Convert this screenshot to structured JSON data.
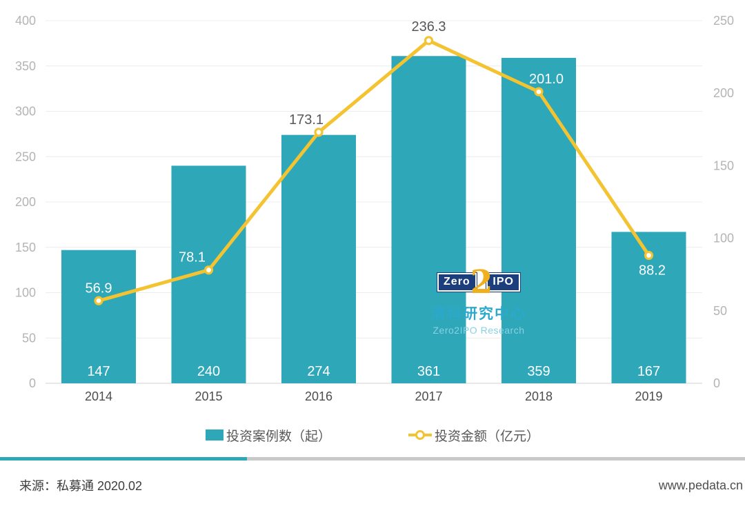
{
  "chart_data": {
    "type": "bar",
    "combo": "bar+line",
    "categories": [
      "2014",
      "2015",
      "2016",
      "2017",
      "2018",
      "2019"
    ],
    "series": [
      {
        "name": "投资案例数（起）",
        "type": "bar",
        "axis": "left",
        "values": [
          147,
          240,
          274,
          361,
          359,
          167
        ],
        "labels": [
          "147",
          "240",
          "274",
          "361",
          "359",
          "167"
        ],
        "color": "#2EA7B8"
      },
      {
        "name": "投资金额（亿元）",
        "type": "line",
        "axis": "right",
        "values": [
          56.9,
          78.1,
          173.1,
          236.3,
          201.0,
          88.2
        ],
        "labels": [
          "56.9",
          "78.1",
          "173.1",
          "236.3",
          "201.0",
          "88.2"
        ],
        "color": "#F3C332"
      }
    ],
    "left_axis": {
      "min": 0,
      "max": 400,
      "step": 50
    },
    "right_axis": {
      "min": 0,
      "max": 250,
      "step": 50
    },
    "grid": true,
    "legend_position": "bottom"
  },
  "logo": {
    "zero": "Zero",
    "two": "2",
    "ipo": "IPO",
    "name_cn": "清科研究中心",
    "name_en": "Zero2IPO Research"
  },
  "footer": {
    "source": "来源：私募通 2020.02",
    "website": "www.pedata.cn"
  },
  "colors": {
    "bar": "#2EA7B8",
    "line": "#F3C332",
    "marker_fill": "#FFFFFF",
    "grid": "#ECECEC",
    "baseline": "#E0E0E0",
    "tick_text": "#B4B4B4",
    "category_text": "#4D4D4D",
    "bar_label_text": "#FFFFFF",
    "line_label_dark": "#56575B",
    "line_label_light": "#FFFFFF",
    "divider_teal": "#2EA7B8",
    "divider_gray": "#C9C9C9",
    "logo_navy": "#1C3E7C",
    "logo_gold": "#EFAF1F",
    "logo_teal": "#2BA9CB",
    "logo_light": "#86D2E3"
  }
}
